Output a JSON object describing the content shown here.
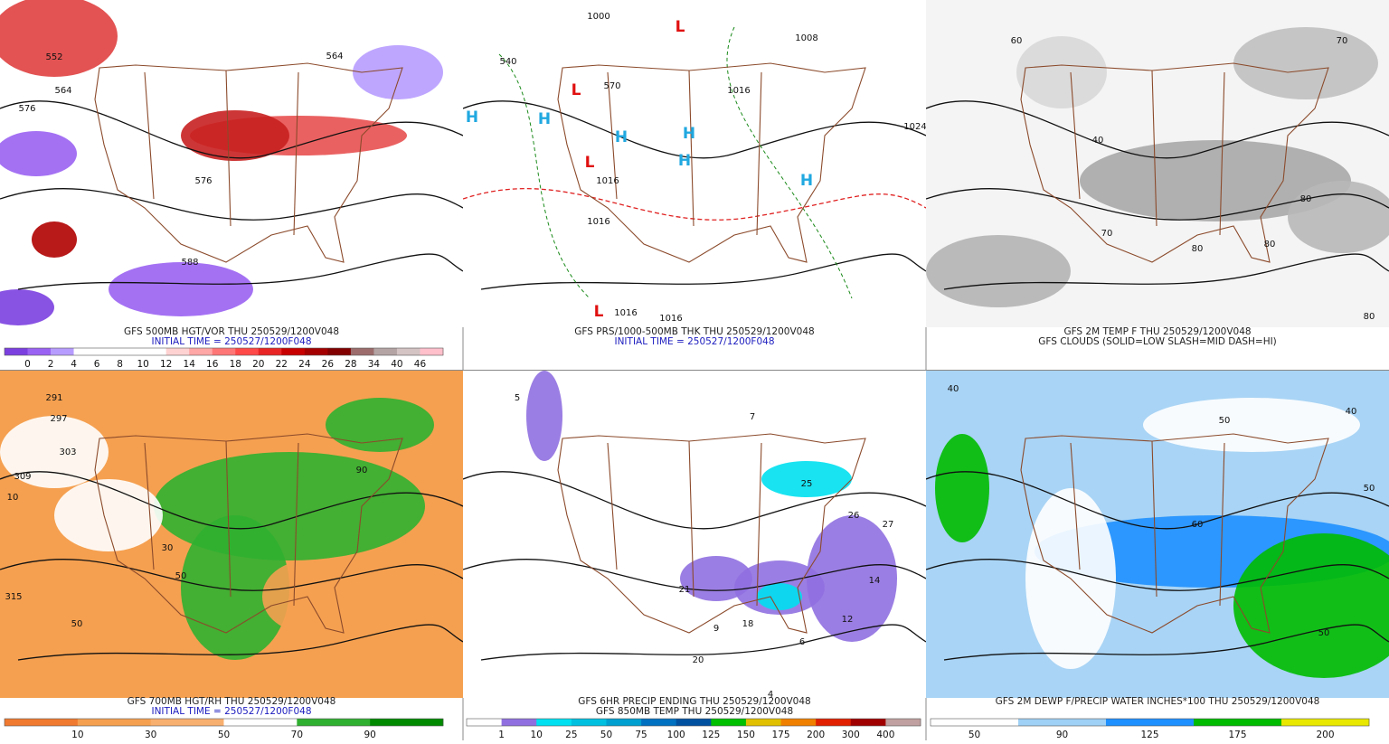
{
  "panels": [
    {
      "title": "GFS 500MB HGT/VOR THU 250529/1200V048",
      "subtitle": "INITIAL TIME = 250527/1200F048",
      "labels": [
        "552",
        "564",
        "576",
        "564",
        "576",
        "588"
      ],
      "colorbar": {
        "colors": [
          "#7b3fe0",
          "#9a62f2",
          "#b79cff",
          "#ffffff",
          "#ffffff",
          "#ffffff",
          "#ffffff",
          "#ffd2d2",
          "#ffa6a6",
          "#ff7676",
          "#ff4848",
          "#e82424",
          "#c80000",
          "#a40000",
          "#820000",
          "#9c6c6c",
          "#b4a4a4",
          "#d4c4c4",
          "#ffc0cb"
        ],
        "labels": [
          0,
          2,
          4,
          6,
          8,
          10,
          12,
          14,
          16,
          18,
          20,
          22,
          24,
          26,
          28,
          34,
          40,
          46
        ]
      }
    },
    {
      "title": "GFS PRS/1000-500MB THK THU 250529/1200V048",
      "subtitle": "INITIAL TIME = 250527/1200F048",
      "labels": [
        "1000",
        "1008",
        "1016",
        "1024",
        "1016",
        "540",
        "570",
        "1016",
        "1016",
        "1016",
        "L",
        "L",
        "L",
        "L",
        "H",
        "H",
        "H",
        "H",
        "H",
        "H"
      ]
    },
    {
      "title": "GFS 2M TEMP F THU 250529/1200V048",
      "subtitle": "GFS CLOUDS (SOLID=LOW SLASH=MID DASH=HI)",
      "labels": [
        "60",
        "70",
        "80",
        "40",
        "80",
        "70",
        "80",
        "80"
      ]
    },
    {
      "title": "GFS 700MB HGT/RH THU 250529/1200V048",
      "subtitle": "INITIAL TIME = 250527/1200F048",
      "labels": [
        "291",
        "297",
        "303",
        "309",
        "315",
        "10",
        "30",
        "50",
        "90",
        "50"
      ],
      "colorbar": {
        "colors": [
          "#f07a30",
          "#f5a050",
          "#f8b070",
          "#ffffff",
          "#30b030",
          "#008a00"
        ],
        "labels": [
          10,
          30,
          50,
          70,
          90
        ]
      }
    },
    {
      "title": "GFS 6HR PRECIP ENDING THU 250529/1200V048",
      "subtitle": "GFS 850MB TEMP THU 250529/1200V048",
      "labels": [
        "5",
        "7",
        "26",
        "27",
        "25",
        "21",
        "14",
        "12",
        "9",
        "18",
        "6",
        "4",
        "20"
      ],
      "colorbar": {
        "colors": [
          "#ffffff",
          "#9070e0",
          "#00e0f0",
          "#00c0e0",
          "#00a0d0",
          "#0070c0",
          "#0050a0",
          "#00c000",
          "#e0c000",
          "#f08000",
          "#e02000",
          "#a00000",
          "#c0a0a0"
        ],
        "labels": [
          1,
          10,
          25,
          50,
          75,
          100,
          125,
          150,
          175,
          200,
          300,
          400
        ]
      }
    },
    {
      "title": "GFS 2M DEWP F/PRECIP WATER INCHES*100 THU 250529/1200V048",
      "labels": [
        "40",
        "50",
        "40",
        "50",
        "60",
        "50"
      ],
      "colorbar": {
        "colors": [
          "#ffffff",
          "#9fd0f5",
          "#1e90ff",
          "#00bb00",
          "#e8e800"
        ],
        "labels": [
          50,
          90,
          125,
          175,
          200
        ]
      }
    }
  ]
}
